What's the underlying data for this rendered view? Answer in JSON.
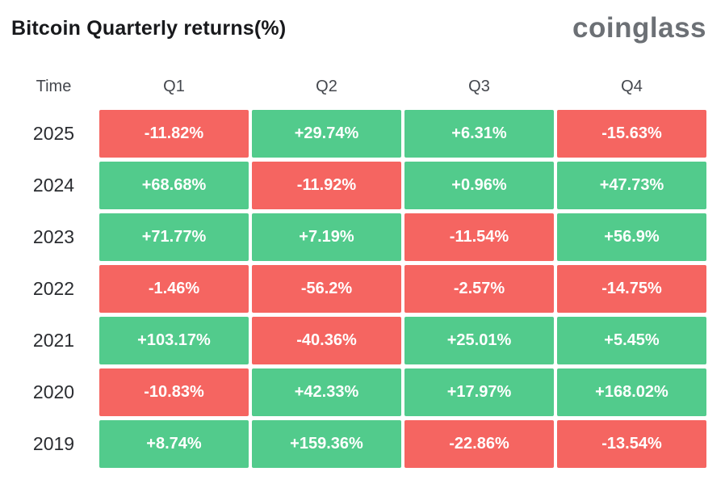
{
  "header": {
    "title": "Bitcoin Quarterly returns(%)",
    "logo_text": "coinglass"
  },
  "colors": {
    "positive": "#52cb8c",
    "negative": "#f56561",
    "cell_text": "#ffffff",
    "title_text": "#18191c",
    "logo_text": "#6c7075",
    "background": "#ffffff"
  },
  "chart_data": {
    "type": "table",
    "title": "Bitcoin Quarterly returns(%)",
    "columns": [
      "Time",
      "Q1",
      "Q2",
      "Q3",
      "Q4"
    ],
    "rows": [
      {
        "year": "2025",
        "values": [
          "-11.82%",
          "+29.74%",
          "+6.31%",
          "-15.63%"
        ]
      },
      {
        "year": "2024",
        "values": [
          "+68.68%",
          "-11.92%",
          "+0.96%",
          "+47.73%"
        ]
      },
      {
        "year": "2023",
        "values": [
          "+71.77%",
          "+7.19%",
          "-11.54%",
          "+56.9%"
        ]
      },
      {
        "year": "2022",
        "values": [
          "-1.46%",
          "-56.2%",
          "-2.57%",
          "-14.75%"
        ]
      },
      {
        "year": "2021",
        "values": [
          "+103.17%",
          "-40.36%",
          "+25.01%",
          "+5.45%"
        ]
      },
      {
        "year": "2020",
        "values": [
          "-10.83%",
          "+42.33%",
          "+17.97%",
          "+168.02%"
        ]
      },
      {
        "year": "2019",
        "values": [
          "+8.74%",
          "+159.36%",
          "-22.86%",
          "-13.54%"
        ]
      }
    ],
    "color_rule": "negative values red, positive values green",
    "legend_position": "none",
    "grid": false
  }
}
